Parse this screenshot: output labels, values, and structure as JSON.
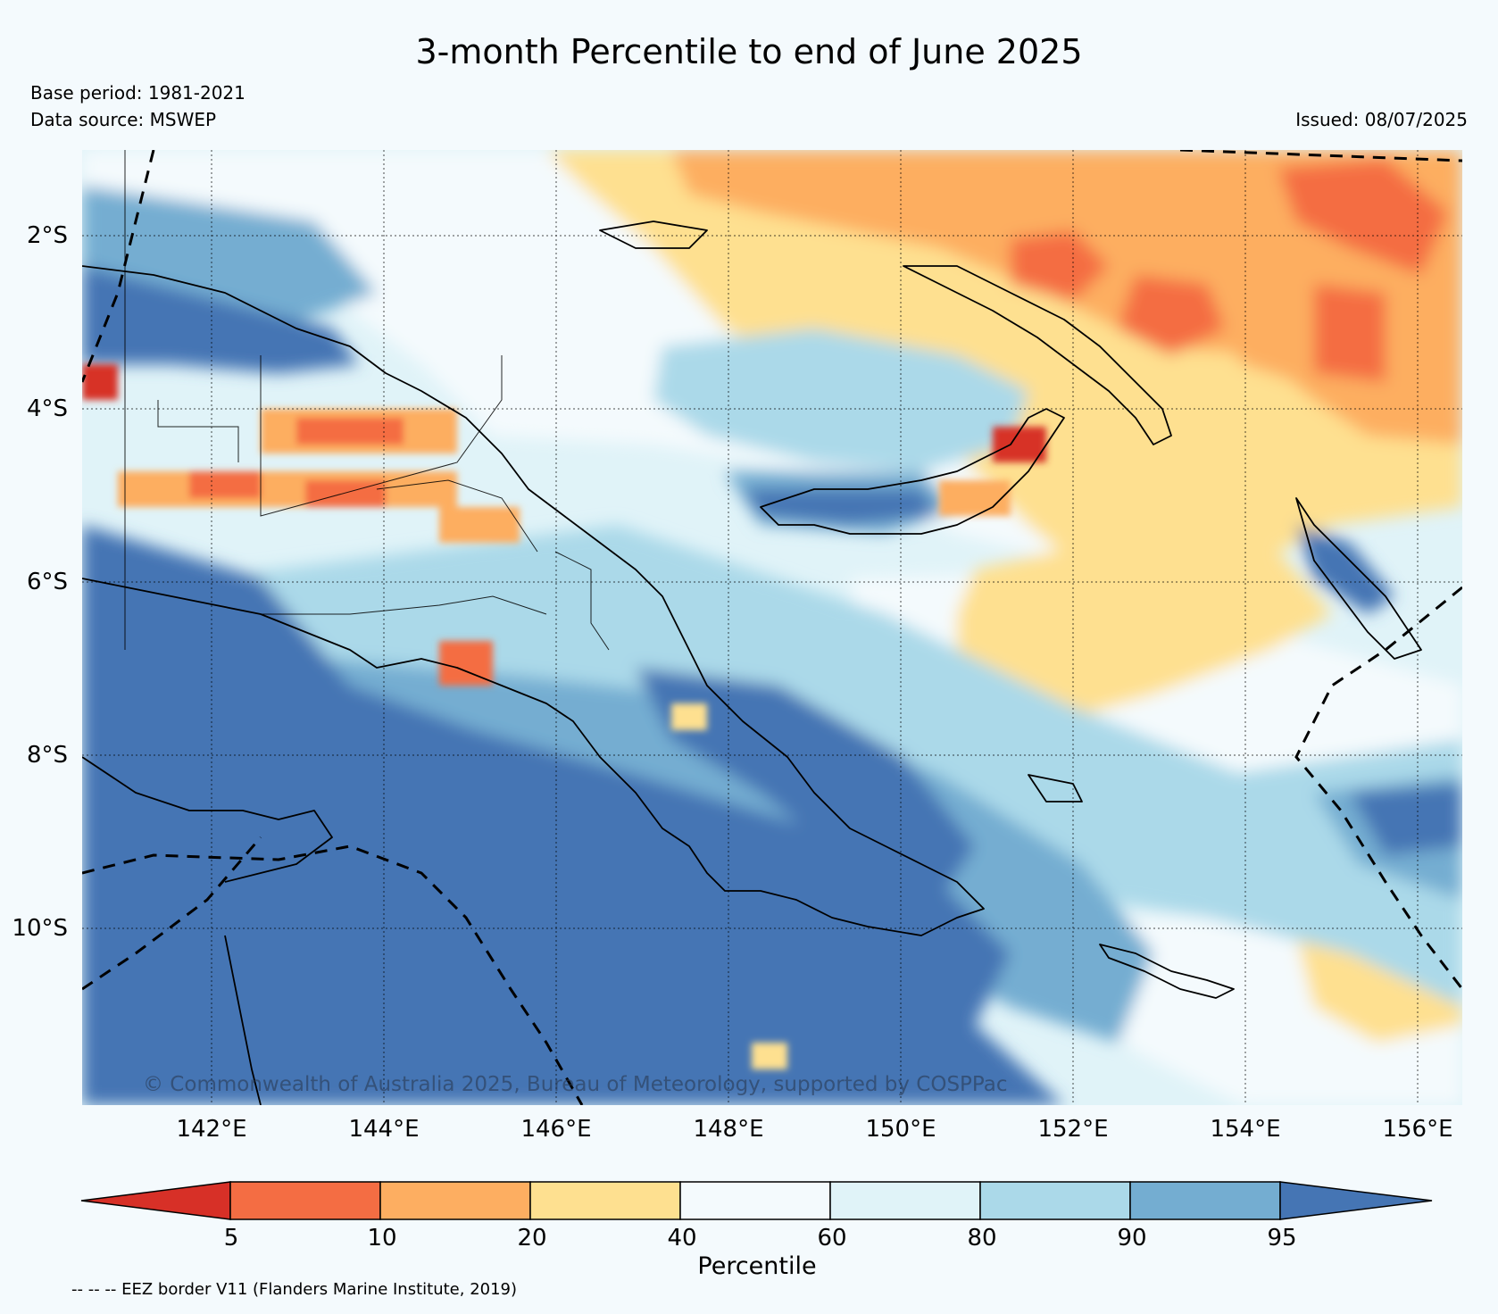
{
  "title": "3-month Percentile to end of June 2025",
  "base_period": "Base period: 1981-2021",
  "data_source": "Data source: MSWEP",
  "issued": "Issued: 08/07/2025",
  "watermark": "© Commonwealth of Australia 2025, Bureau of Meteorology, supported by COSPPac",
  "footnote": "-- -- -- EEZ border V11 (Flanders Marine Institute, 2019)",
  "map": {
    "lat_labels": [
      "2°S",
      "4°S",
      "6°S",
      "8°S",
      "10°S"
    ],
    "lon_labels": [
      "142°E",
      "144°E",
      "146°E",
      "148°E",
      "150°E",
      "152°E",
      "154°E",
      "156°E"
    ],
    "lat_range": [
      -12.0,
      -1.0
    ],
    "lon_range": [
      140.5,
      156.5
    ],
    "gridlines": true,
    "region": "Papua New Guinea"
  },
  "colorbar": {
    "label": "Percentile",
    "ticks": [
      "5",
      "10",
      "20",
      "40",
      "60",
      "80",
      "90",
      "95"
    ],
    "bins": [
      {
        "range": "<5",
        "color": "#d73027"
      },
      {
        "range": "5-10",
        "color": "#f46d43"
      },
      {
        "range": "10-20",
        "color": "#fdae61"
      },
      {
        "range": "20-40",
        "color": "#fee090"
      },
      {
        "range": "40-60",
        "color": "#f4fafd"
      },
      {
        "range": "60-80",
        "color": "#e0f3f8"
      },
      {
        "range": "80-90",
        "color": "#abd9e9"
      },
      {
        "range": "90-95",
        "color": "#74add1"
      },
      {
        "range": ">95",
        "color": "#4575b4"
      }
    ]
  }
}
